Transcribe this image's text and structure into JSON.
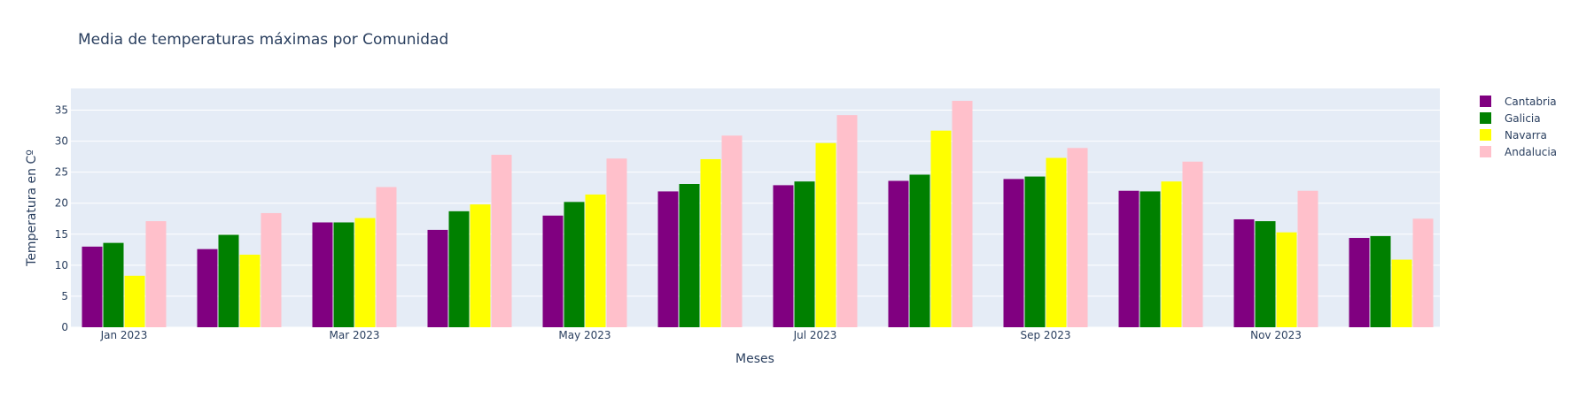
{
  "chart_data": {
    "type": "bar",
    "title": "Media de temperaturas máximas por Comunidad",
    "xlabel": "Meses",
    "ylabel": "Temperatura en Cº",
    "ylim": [
      0,
      38.5
    ],
    "yticks": [
      0,
      5,
      10,
      15,
      20,
      25,
      30,
      35
    ],
    "grid": true,
    "legend_position": "top-right",
    "x_tick_labels": [
      "Jan 2023",
      "Mar 2023",
      "May 2023",
      "Jul 2023",
      "Sep 2023",
      "Nov 2023"
    ],
    "x_tick_label_indices": [
      0,
      2,
      4,
      6,
      8,
      10
    ],
    "categories": [
      "2023-01",
      "2023-02",
      "2023-03",
      "2023-04",
      "2023-05",
      "2023-06",
      "2023-07",
      "2023-08",
      "2023-09",
      "2023-10",
      "2023-11",
      "2023-12"
    ],
    "series": [
      {
        "name": "Cantabria",
        "color": "#800080",
        "values": [
          13.0,
          12.6,
          16.9,
          15.7,
          18.0,
          21.9,
          22.9,
          23.6,
          23.9,
          22.0,
          17.4,
          14.4
        ]
      },
      {
        "name": "Galicia",
        "color": "#008000",
        "values": [
          13.6,
          14.9,
          16.9,
          18.7,
          20.2,
          23.1,
          23.5,
          24.6,
          24.3,
          21.9,
          17.1,
          14.7
        ]
      },
      {
        "name": "Navarra",
        "color": "#ffff00",
        "values": [
          8.3,
          11.7,
          17.6,
          19.8,
          21.4,
          27.1,
          29.7,
          31.7,
          27.3,
          23.5,
          15.3,
          10.9
        ]
      },
      {
        "name": "Andalucia",
        "color": "#ffc0cb",
        "values": [
          17.1,
          18.4,
          22.6,
          27.8,
          27.2,
          30.9,
          34.2,
          36.5,
          28.9,
          26.7,
          22.0,
          17.5
        ]
      }
    ]
  }
}
